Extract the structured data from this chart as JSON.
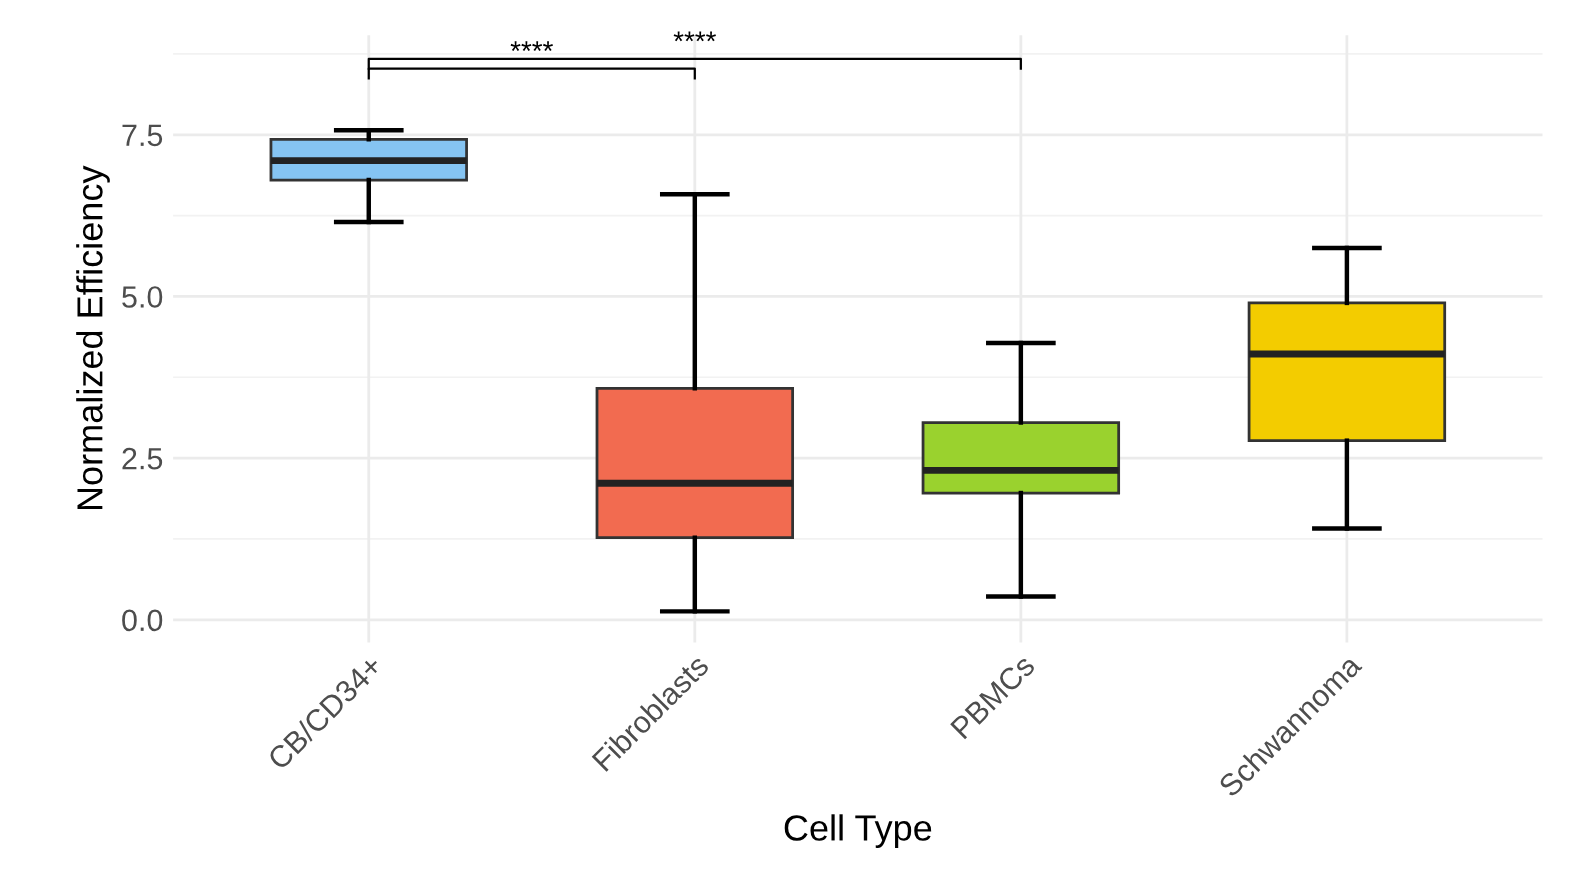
{
  "chart_data": {
    "type": "box",
    "xlabel": "Cell Type",
    "ylabel": "Normalized Efficiency",
    "categories": [
      "CB/CD34+",
      "Fibroblasts",
      "PBMCs",
      "Schwannoma"
    ],
    "colors": [
      "#85c4f2",
      "#f26b50",
      "#9ad22e",
      "#f3cc00"
    ],
    "boxes": [
      {
        "low": 6.15,
        "q1": 6.8,
        "median": 7.1,
        "q3": 7.43,
        "high": 7.57
      },
      {
        "low": 0.13,
        "q1": 1.27,
        "median": 2.11,
        "q3": 3.58,
        "high": 6.58
      },
      {
        "low": 0.36,
        "q1": 1.96,
        "median": 2.31,
        "q3": 3.05,
        "high": 4.28
      },
      {
        "low": 1.41,
        "q1": 2.77,
        "median": 4.11,
        "q3": 4.9,
        "high": 5.75
      }
    ],
    "ylim": [
      -0.35,
      9.04
    ],
    "yticks": [
      {
        "value": 0,
        "label": "0.0"
      },
      {
        "value": 2.5,
        "label": "2.5"
      },
      {
        "value": 5,
        "label": "5.0"
      },
      {
        "value": 7.5,
        "label": "7.5"
      }
    ],
    "grid": true,
    "annotations": [
      "****",
      "****"
    ]
  }
}
